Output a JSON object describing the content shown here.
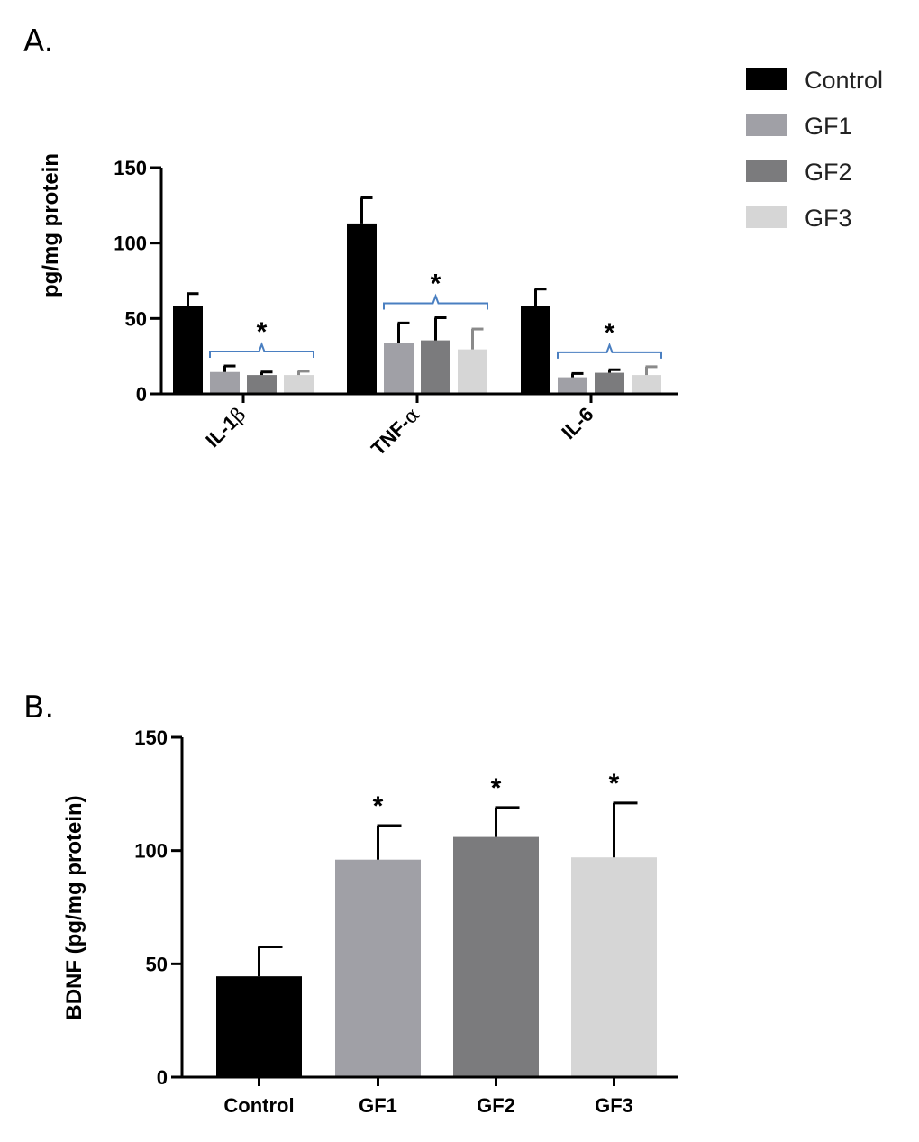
{
  "chart_data": [
    {
      "id": "A",
      "panel_label": "A.",
      "type": "bar",
      "ylabel": "pg/mg protein",
      "ylim": [
        0,
        150
      ],
      "yticks": [
        "0",
        "50",
        "100",
        "150"
      ],
      "categories": [
        {
          "main": "IL-1",
          "greek": "β"
        },
        {
          "main": "TNF-",
          "greek": "α"
        },
        {
          "main": "IL-6",
          "greek": ""
        }
      ],
      "series": [
        {
          "name": "Control",
          "color": "#000000",
          "values": [
            58.5,
            113,
            58.5
          ],
          "errors": [
            8,
            17,
            11
          ]
        },
        {
          "name": "GF1",
          "color": "#a0a0a6",
          "values": [
            14.5,
            34,
            11
          ],
          "errors": [
            4,
            13,
            2.5
          ]
        },
        {
          "name": "GF2",
          "color": "#7b7b7d",
          "values": [
            12.5,
            35.5,
            14
          ],
          "errors": [
            2,
            15,
            2
          ]
        },
        {
          "name": "GF3",
          "color": "#d6d6d6",
          "values": [
            12.5,
            29.5,
            12.5
          ],
          "errors": [
            2.5,
            13.5,
            5.5
          ]
        }
      ],
      "significance": "*",
      "legend_position": "top-right"
    },
    {
      "id": "B",
      "panel_label": "B.",
      "type": "bar",
      "ylabel": "BDNF (pg/mg protein)",
      "ylim": [
        0,
        150
      ],
      "yticks": [
        "0",
        "50",
        "100",
        "150"
      ],
      "categories": [
        "Control",
        "GF1",
        "GF2",
        "GF3"
      ],
      "values": [
        44.5,
        96,
        106,
        97
      ],
      "errors": [
        13,
        15,
        13,
        24
      ],
      "colors": [
        "#000000",
        "#a0a0a6",
        "#7b7b7d",
        "#d6d6d6"
      ],
      "significance": [
        "",
        "*",
        "*",
        "*"
      ]
    }
  ]
}
